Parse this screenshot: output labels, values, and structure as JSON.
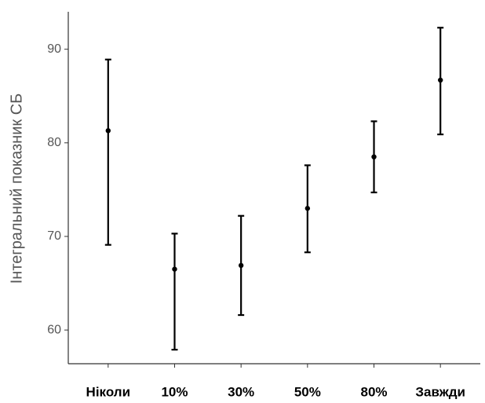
{
  "chart_data": {
    "type": "errorbar",
    "y_label": "Інтегральний показник СБ",
    "categories": [
      "Ніколи",
      "10%",
      "30%",
      "50%",
      "80%",
      "Завжди"
    ],
    "values": [
      81.3,
      66.5,
      66.9,
      73.0,
      78.5,
      86.7
    ],
    "lower": [
      69.1,
      57.9,
      61.6,
      68.3,
      74.7,
      80.9
    ],
    "upper": [
      88.9,
      70.3,
      72.2,
      77.6,
      82.3,
      92.3
    ],
    "color": "#000000",
    "ylim": [
      56.4,
      94.0
    ],
    "yticks": [
      60,
      70,
      80,
      90
    ],
    "grid": false
  }
}
